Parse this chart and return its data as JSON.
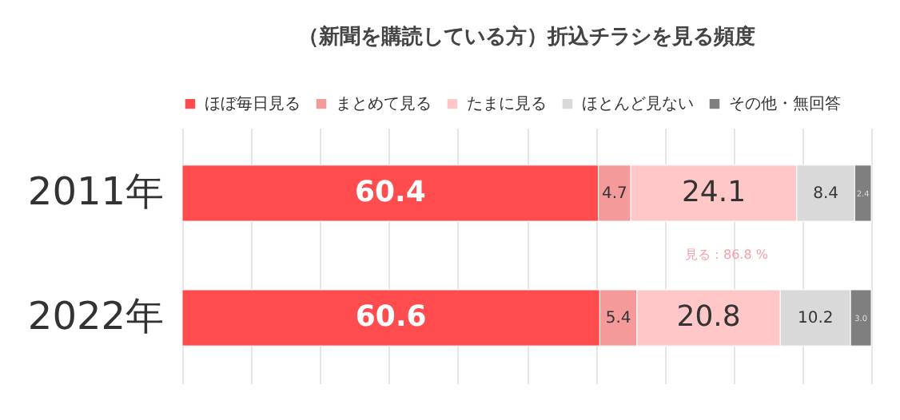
{
  "chart_data": {
    "type": "bar",
    "orientation": "horizontal",
    "stacked": true,
    "title": "（新聞を購読している方）折込チラシを見る頻度",
    "categories": [
      "2011年",
      "2022年"
    ],
    "series": [
      {
        "name": "ほぼ毎日見る",
        "color": "#ff4d4f",
        "values": [
          60.4,
          60.6
        ]
      },
      {
        "name": "まとめて見る",
        "color": "#f59a9a",
        "values": [
          4.7,
          5.4
        ]
      },
      {
        "name": "たまに見る",
        "color": "#ffc7c7",
        "values": [
          24.1,
          20.8
        ]
      },
      {
        "name": "ほとんど見ない",
        "color": "#d9d9d9",
        "values": [
          8.4,
          10.2
        ]
      },
      {
        "name": "その他・無回答",
        "color": "#7f7f7f",
        "values": [
          2.4,
          3.0
        ],
        "value_labels": [
          "2.4",
          "3.0"
        ]
      }
    ],
    "xlim": [
      0,
      100
    ],
    "xticks": [
      {
        "value": 0,
        "label": null
      },
      {
        "value": 10,
        "label": null
      },
      {
        "value": 20,
        "label": null
      },
      {
        "value": 30,
        "label": null
      },
      {
        "value": 40,
        "label": null
      },
      {
        "value": 50,
        "label": null
      },
      {
        "value": 60,
        "label": null
      },
      {
        "value": 70,
        "label": null
      },
      {
        "value": 80,
        "label": null
      },
      {
        "value": 90,
        "label": null
      },
      {
        "value": 100,
        "label": null
      }
    ],
    "tick_labels": "y",
    "grid": "x",
    "legend": "top",
    "data_labels": true,
    "annotations": [
      "見る：86.8 %"
    ]
  }
}
